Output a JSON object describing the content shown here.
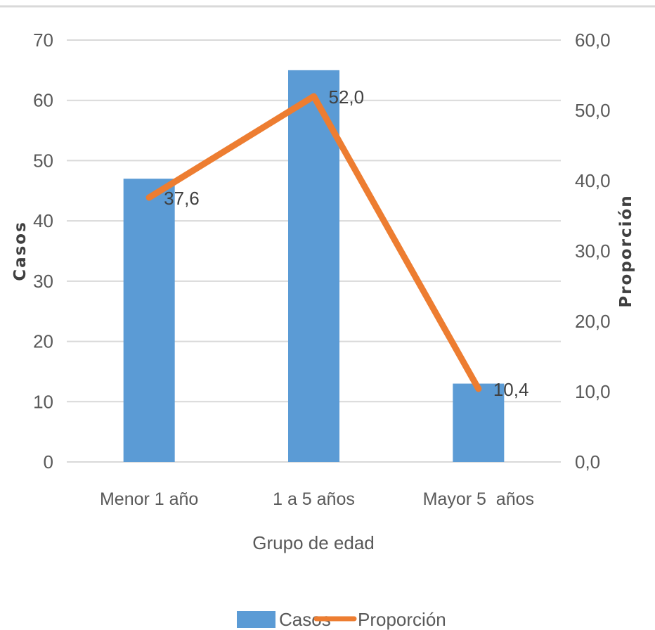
{
  "chart_data": {
    "type": "bar",
    "categories": [
      "Menor 1 año",
      "1 a 5 años",
      "Mayor 5  años"
    ],
    "series": [
      {
        "name": "Casos",
        "type": "bar",
        "axis": "left",
        "color": "#5B9BD5",
        "values": [
          47,
          65,
          13
        ]
      },
      {
        "name": "Proporción",
        "type": "line",
        "axis": "right",
        "color": "#ED7D31",
        "values": [
          37.6,
          52.0,
          10.4
        ],
        "labels": [
          "37,6",
          "52,0",
          "10,4"
        ]
      }
    ],
    "xlabel": "Grupo de edad",
    "ylabel": "Casos",
    "y2label": "Proporción",
    "ylim": [
      0,
      70
    ],
    "y2lim": [
      0,
      60
    ],
    "yticks": [
      "0",
      "10",
      "20",
      "30",
      "40",
      "50",
      "60",
      "70"
    ],
    "y2ticks": [
      "0,0",
      "10,0",
      "20,0",
      "30,0",
      "40,0",
      "50,0",
      "60,0"
    ],
    "grid": true,
    "legend": "bottom"
  }
}
